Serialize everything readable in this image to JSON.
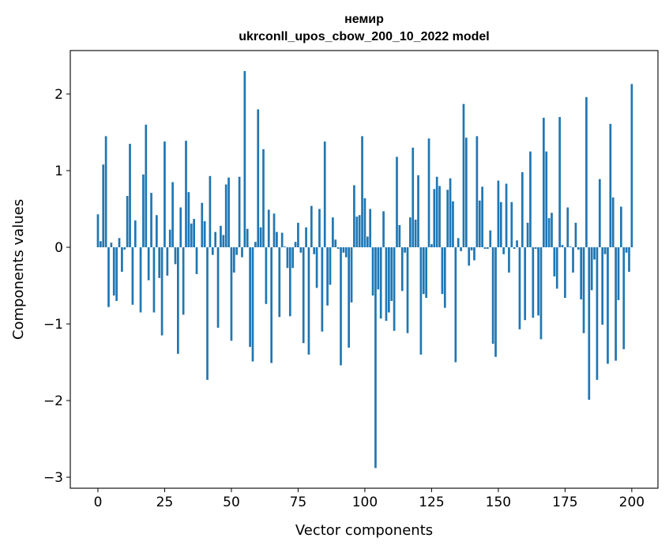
{
  "chart_data": {
    "type": "bar",
    "title": "немир",
    "subtitle": "ukrconll_upos_cbow_200_10_2022 model",
    "xlabel": "Vector components",
    "ylabel": "Components values",
    "xlim": [
      -10.35,
      209.8
    ],
    "ylim": [
      -3.144,
      2.567
    ],
    "xticks": [
      0,
      25,
      50,
      75,
      100,
      125,
      150,
      175,
      200
    ],
    "yticks": [
      -3,
      -2,
      -1,
      0,
      1,
      2
    ],
    "ytick_labels": [
      "−3",
      "−2",
      "−1",
      "0",
      "1",
      "2"
    ],
    "grid": false,
    "color": "#1f77b4",
    "values": [
      0.43,
      0.08,
      1.08,
      1.45,
      -0.78,
      0.06,
      -0.63,
      -0.7,
      0.12,
      -0.32,
      -0.03,
      0.67,
      1.35,
      -0.75,
      0.35,
      0.0,
      -0.85,
      0.95,
      1.6,
      -0.43,
      0.71,
      -0.85,
      0.42,
      -0.4,
      -1.15,
      1.38,
      -0.37,
      0.23,
      0.85,
      -0.22,
      -1.39,
      0.52,
      -0.88,
      1.39,
      0.72,
      0.31,
      0.37,
      -0.35,
      0.0,
      0.58,
      0.34,
      -1.73,
      0.93,
      -0.1,
      0.2,
      -1.05,
      0.28,
      0.16,
      0.82,
      0.91,
      -1.22,
      -0.33,
      -0.1,
      0.92,
      -0.13,
      2.3,
      0.24,
      -1.3,
      -1.49,
      0.07,
      1.8,
      0.26,
      1.28,
      -0.74,
      0.49,
      -1.51,
      0.44,
      0.2,
      -0.91,
      0.19,
      0.01,
      -0.27,
      -0.9,
      -0.27,
      0.07,
      0.32,
      -0.07,
      -1.25,
      0.26,
      -1.4,
      0.54,
      -0.09,
      -0.53,
      0.5,
      -1.1,
      1.38,
      -0.76,
      -0.49,
      0.39,
      0.1,
      -0.02,
      -1.54,
      -0.07,
      -0.13,
      -1.31,
      -0.72,
      0.81,
      0.4,
      0.42,
      1.45,
      0.64,
      0.14,
      0.5,
      -0.63,
      -2.88,
      -0.55,
      -0.93,
      0.47,
      -0.96,
      -0.85,
      -0.7,
      -1.09,
      1.18,
      0.29,
      -0.57,
      -0.07,
      -1.12,
      0.39,
      1.3,
      0.36,
      0.94,
      -1.4,
      -0.61,
      -0.66,
      1.42,
      0.04,
      0.76,
      0.92,
      0.8,
      -0.61,
      -0.79,
      0.75,
      0.9,
      0.6,
      -1.5,
      0.12,
      -0.05,
      1.87,
      1.43,
      -0.24,
      -0.04,
      -0.17,
      1.45,
      0.61,
      0.79,
      -0.02,
      -0.02,
      0.22,
      -1.26,
      -1.43,
      0.87,
      0.59,
      -0.09,
      0.83,
      -0.33,
      0.59,
      -0.02,
      0.09,
      -1.07,
      0.98,
      -0.95,
      0.32,
      1.25,
      -0.92,
      -0.02,
      -0.89,
      -1.2,
      1.69,
      1.25,
      0.38,
      0.45,
      -0.38,
      -0.54,
      1.7,
      0.03,
      -0.66,
      0.52,
      0.01,
      -0.33,
      0.32,
      -0.03,
      -0.68,
      -1.12,
      1.96,
      -1.99,
      -0.56,
      -0.16,
      -1.73,
      0.89,
      -1.01,
      -0.09,
      -1.52,
      1.61,
      0.65,
      -1.48,
      -0.69,
      0.53,
      -1.33,
      -0.07,
      -0.32,
      2.13
    ]
  }
}
